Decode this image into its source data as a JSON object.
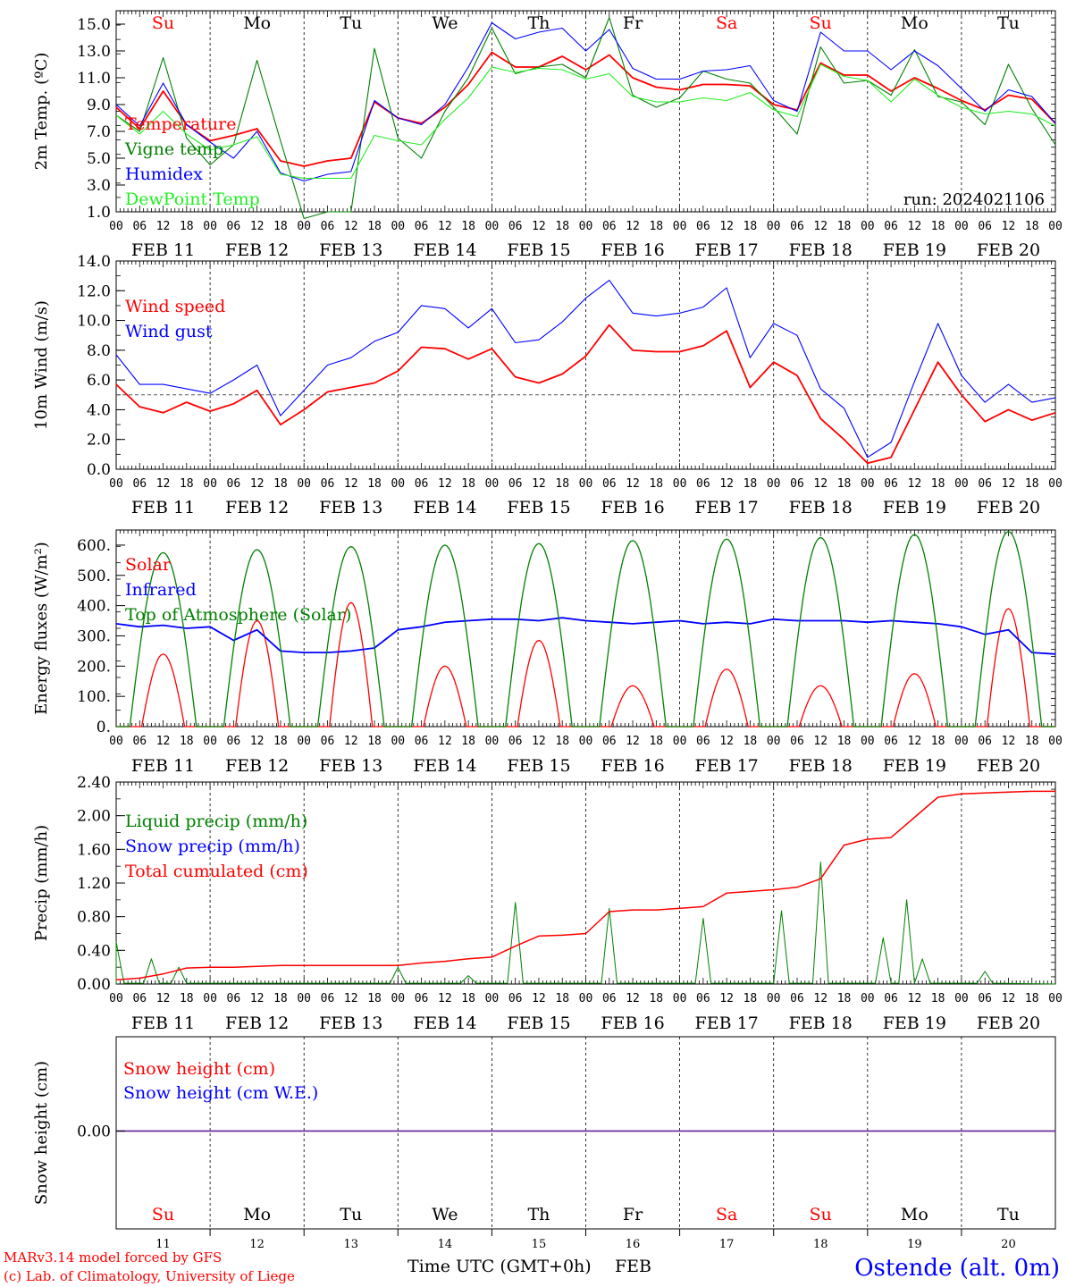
{
  "footer": {
    "credit_model": "MARv3.14 model forced by GFS",
    "credit_lab": "(c) Lab. of Climatology, University of Liege",
    "xaxis_title": "Time UTC (GMT+0h)",
    "month": "FEB",
    "station": "Ostende (alt. 0m)"
  },
  "colors": {
    "red": "#ff0000",
    "green": "#008000",
    "blue": "#0000ff",
    "lightgreen": "#22ee22",
    "purple": "#6e2f9e",
    "weekend": "#ff0000",
    "weekday": "#000000"
  },
  "chart_data": [
    {
      "type": "line",
      "panel": "temperature",
      "ylabel": "2m Temp. (ºC)",
      "ylim": [
        1,
        16
      ],
      "yticks": [
        "1.0",
        "3.0",
        "5.0",
        "7.0",
        "9.0",
        "11.0",
        "13.0",
        "15.0"
      ],
      "annotation": "run: 2024021106",
      "weekday_row": [
        "Su",
        "Mo",
        "Tu",
        "We",
        "Th",
        "Fr",
        "Sa",
        "Su",
        "Mo",
        "Tu"
      ],
      "hour_ticks": [
        "00",
        "06",
        "12",
        "18"
      ],
      "date_labels": [
        "FEB 11",
        "FEB 12",
        "FEB 13",
        "FEB 14",
        "FEB 15",
        "FEB 16",
        "FEB 17",
        "FEB 18",
        "FEB 19",
        "FEB 20"
      ],
      "x_hours": [
        0,
        6,
        12,
        18,
        24,
        30,
        36,
        42,
        48,
        54,
        60,
        66,
        72,
        78,
        84,
        90,
        96,
        102,
        108,
        114,
        120,
        126,
        132,
        138,
        144,
        150,
        156,
        162,
        168,
        174,
        180,
        186,
        192,
        198,
        204,
        210,
        216,
        222,
        228,
        234,
        240
      ],
      "series": [
        {
          "name": "Temperature",
          "color": "red",
          "values": [
            8.8,
            7.2,
            10.0,
            7.5,
            6.3,
            6.7,
            7.2,
            4.8,
            4.4,
            4.8,
            5.0,
            9.2,
            8.0,
            7.6,
            8.8,
            10.5,
            12.9,
            11.8,
            11.8,
            12.6,
            11.6,
            12.7,
            11.0,
            10.3,
            10.1,
            10.5,
            10.5,
            10.4,
            9.0,
            8.6,
            12.1,
            11.2,
            11.2,
            10.0,
            11.0,
            10.2,
            9.3,
            8.6,
            9.7,
            9.4,
            7.6
          ]
        },
        {
          "name": "Vigne temp",
          "color": "green",
          "values": [
            8.2,
            7.0,
            12.5,
            6.5,
            4.5,
            6.0,
            12.3,
            6.3,
            0.5,
            1.0,
            1.0,
            13.2,
            6.5,
            5.0,
            8.5,
            11.0,
            14.7,
            11.3,
            11.8,
            12.0,
            11.0,
            15.5,
            9.7,
            8.8,
            9.5,
            11.5,
            10.9,
            10.6,
            8.8,
            6.8,
            13.3,
            10.6,
            10.8,
            9.7,
            13.1,
            9.6,
            9.2,
            7.5,
            12.0,
            8.7,
            6.0
          ]
        },
        {
          "name": "Humidex",
          "color": "blue",
          "values": [
            9.0,
            7.4,
            10.6,
            7.5,
            6.2,
            5.0,
            7.0,
            3.9,
            3.3,
            3.8,
            4.0,
            9.3,
            8.0,
            7.5,
            9.0,
            11.8,
            15.1,
            13.9,
            14.4,
            14.7,
            13.0,
            14.6,
            11.7,
            10.9,
            10.9,
            11.5,
            11.6,
            11.9,
            9.3,
            8.5,
            14.4,
            13.0,
            13.0,
            11.6,
            13.0,
            11.9,
            10.2,
            8.5,
            10.1,
            9.6,
            7.6
          ]
        },
        {
          "name": "DewPoint Temp",
          "color": "lightgreen",
          "values": [
            8.2,
            6.8,
            8.5,
            6.8,
            5.6,
            6.0,
            6.6,
            3.8,
            3.5,
            3.5,
            3.5,
            6.7,
            6.3,
            6.0,
            7.9,
            9.5,
            11.8,
            11.4,
            11.7,
            11.6,
            10.9,
            11.3,
            9.6,
            9.2,
            9.2,
            9.5,
            9.3,
            9.9,
            8.6,
            8.1,
            12.0,
            11.1,
            10.8,
            9.2,
            10.9,
            9.7,
            8.8,
            8.3,
            8.5,
            8.3,
            7.4
          ]
        }
      ]
    },
    {
      "type": "line",
      "panel": "wind",
      "ylabel": "10m Wind (m/s)",
      "ylim": [
        0,
        14
      ],
      "yticks": [
        "0.0",
        "2.0",
        "4.0",
        "6.0",
        "8.0",
        "10.0",
        "12.0",
        "14.0"
      ],
      "reference_line": 5,
      "hour_ticks": [
        "00",
        "06",
        "12",
        "18"
      ],
      "date_labels": [
        "FEB 11",
        "FEB 12",
        "FEB 13",
        "FEB 14",
        "FEB 15",
        "FEB 16",
        "FEB 17",
        "FEB 18",
        "FEB 19",
        "FEB 20"
      ],
      "x_hours": [
        0,
        6,
        12,
        18,
        24,
        30,
        36,
        42,
        48,
        54,
        60,
        66,
        72,
        78,
        84,
        90,
        96,
        102,
        108,
        114,
        120,
        126,
        132,
        138,
        144,
        150,
        156,
        162,
        168,
        174,
        180,
        186,
        192,
        198,
        204,
        210,
        216,
        222,
        228,
        234,
        240
      ],
      "series": [
        {
          "name": "Wind speed",
          "color": "red",
          "values": [
            5.7,
            4.2,
            3.8,
            4.5,
            3.9,
            4.4,
            5.3,
            3.0,
            4.0,
            5.2,
            5.5,
            5.8,
            6.6,
            8.2,
            8.1,
            7.4,
            8.1,
            6.2,
            5.8,
            6.4,
            7.6,
            9.7,
            8.0,
            7.9,
            7.9,
            8.3,
            9.3,
            5.5,
            7.2,
            6.3,
            3.4,
            2.0,
            0.4,
            0.8,
            4.0,
            7.2,
            5.0,
            3.2,
            4.0,
            3.3,
            3.8
          ]
        },
        {
          "name": "Wind gust",
          "color": "blue",
          "values": [
            7.7,
            5.7,
            5.7,
            5.4,
            5.1,
            6.0,
            7.0,
            3.6,
            5.3,
            7.0,
            7.5,
            8.6,
            9.2,
            11.0,
            10.8,
            9.5,
            10.8,
            8.5,
            8.7,
            9.9,
            11.5,
            12.7,
            10.5,
            10.3,
            10.5,
            10.9,
            12.2,
            7.5,
            9.8,
            9.0,
            5.4,
            4.1,
            0.8,
            1.8,
            5.9,
            9.8,
            6.3,
            4.5,
            5.7,
            4.5,
            4.8
          ]
        }
      ]
    },
    {
      "type": "line",
      "panel": "energy",
      "ylabel": "Energy fluxes (W/m²)",
      "ylim": [
        0,
        650
      ],
      "yticks": [
        "0.",
        "100.",
        "200.",
        "300.",
        "400.",
        "500.",
        "600."
      ],
      "hour_ticks": [
        "00",
        "06",
        "12",
        "18"
      ],
      "date_labels": [
        "FEB 11",
        "FEB 12",
        "FEB 13",
        "FEB 14",
        "FEB 15",
        "FEB 16",
        "FEB 17",
        "FEB 18",
        "FEB 19",
        "FEB 20"
      ],
      "series": [
        {
          "name": "Solar",
          "color": "red",
          "peaks": [
            240,
            350,
            410,
            200,
            285,
            135,
            190,
            135,
            175,
            390
          ]
        },
        {
          "name": "Infrared",
          "color": "blue",
          "x_hours": [
            0,
            6,
            12,
            18,
            24,
            30,
            36,
            42,
            48,
            54,
            60,
            66,
            72,
            78,
            84,
            90,
            96,
            102,
            108,
            114,
            120,
            126,
            132,
            138,
            144,
            150,
            156,
            162,
            168,
            174,
            180,
            186,
            192,
            198,
            204,
            210,
            216,
            222,
            228,
            234,
            240
          ],
          "values": [
            340,
            330,
            335,
            325,
            330,
            285,
            320,
            250,
            245,
            245,
            250,
            260,
            320,
            330,
            345,
            350,
            355,
            355,
            350,
            360,
            350,
            345,
            340,
            345,
            350,
            340,
            345,
            340,
            355,
            350,
            350,
            350,
            345,
            350,
            345,
            340,
            330,
            305,
            320,
            245,
            240
          ]
        },
        {
          "name": "Top of Atmosphere (Solar)",
          "color": "green",
          "peaks": [
            575,
            585,
            595,
            600,
            605,
            615,
            620,
            625,
            635,
            645
          ]
        }
      ]
    },
    {
      "type": "line",
      "panel": "precip",
      "ylabel": "Precip (mm/h)",
      "ylim": [
        0,
        2.4
      ],
      "yticks": [
        "0.00",
        "0.40",
        "0.80",
        "1.20",
        "1.60",
        "2.00",
        "2.40"
      ],
      "hour_ticks": [
        "00",
        "06",
        "12",
        "18"
      ],
      "date_labels": [
        "FEB 11",
        "FEB 12",
        "FEB 13",
        "FEB 14",
        "FEB 15",
        "FEB 16",
        "FEB 17",
        "FEB 18",
        "FEB 19",
        "FEB 20"
      ],
      "series": [
        {
          "name": "Liquid precip (mm/h)",
          "color": "green",
          "spikes": [
            [
              0,
              0.5
            ],
            [
              9,
              0.3
            ],
            [
              16,
              0.2
            ],
            [
              72,
              0.2
            ],
            [
              90,
              0.1
            ],
            [
              102,
              0.97
            ],
            [
              126,
              0.9
            ],
            [
              150,
              0.78
            ],
            [
              170,
              0.87
            ],
            [
              180,
              1.45
            ],
            [
              196,
              0.55
            ],
            [
              202,
              1.0
            ],
            [
              206,
              0.3
            ],
            [
              222,
              0.15
            ]
          ]
        },
        {
          "name": "Snow precip (mm/h)",
          "color": "blue",
          "values": []
        },
        {
          "name": "Total cumulated (cm)",
          "color": "red",
          "x_hours": [
            0,
            6,
            12,
            18,
            24,
            30,
            36,
            42,
            48,
            54,
            60,
            66,
            72,
            78,
            84,
            90,
            96,
            102,
            108,
            114,
            120,
            126,
            132,
            138,
            144,
            150,
            156,
            162,
            168,
            174,
            180,
            186,
            192,
            198,
            204,
            210,
            216,
            222,
            228,
            234,
            240
          ],
          "values": [
            0.05,
            0.07,
            0.12,
            0.19,
            0.2,
            0.2,
            0.21,
            0.22,
            0.22,
            0.22,
            0.22,
            0.22,
            0.22,
            0.25,
            0.27,
            0.3,
            0.32,
            0.45,
            0.57,
            0.58,
            0.6,
            0.86,
            0.88,
            0.88,
            0.9,
            0.92,
            1.08,
            1.1,
            1.12,
            1.15,
            1.25,
            1.65,
            1.72,
            1.74,
            1.98,
            2.22,
            2.26,
            2.27,
            2.28,
            2.29,
            2.29
          ]
        }
      ]
    },
    {
      "type": "line",
      "panel": "snow",
      "ylabel": "Snow height (cm)",
      "yticks": [
        "0.00"
      ],
      "weekday_row": [
        "Su",
        "Mo",
        "Tu",
        "We",
        "Th",
        "Fr",
        "Sa",
        "Su",
        "Mo",
        "Tu"
      ],
      "day_numbers": [
        "11",
        "12",
        "13",
        "14",
        "15",
        "16",
        "17",
        "18",
        "19",
        "20"
      ],
      "series": [
        {
          "name": "Snow height (cm)",
          "color": "red",
          "values": [
            0,
            0
          ]
        },
        {
          "name": "Snow height (cm W.E.)",
          "color": "blue",
          "values": [
            0,
            0
          ]
        }
      ]
    }
  ]
}
